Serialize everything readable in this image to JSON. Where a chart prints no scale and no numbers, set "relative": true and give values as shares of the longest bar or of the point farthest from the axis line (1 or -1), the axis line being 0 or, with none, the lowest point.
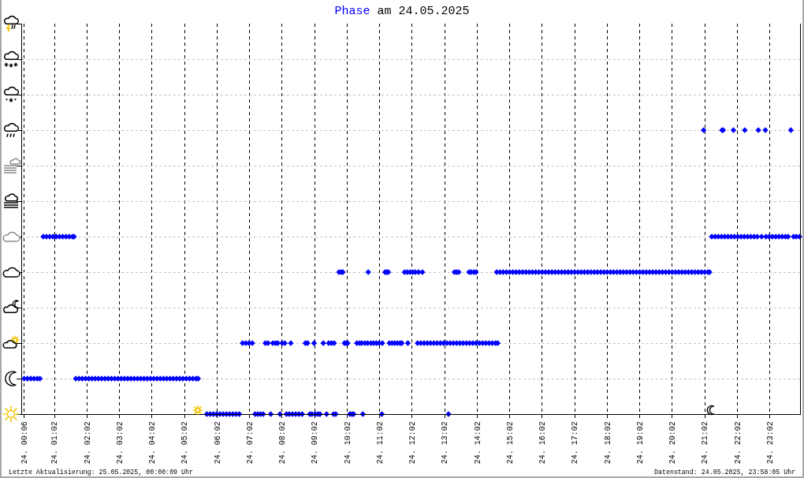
{
  "chart_data": {
    "type": "scatter",
    "title": "Phase am 24.05.2025",
    "annotations": [
      "Letzte Aktualisierung: 25.05.2025, 00:00:09 Uhr",
      "Datenstand: 24.05.2025, 23:58:05 Uhr"
    ],
    "relative": true,
    "series": [
      {
        "color": "#0000ff",
        "x": [
          "2025-05-24T00:06",
          "2025-05-24T00:12",
          "2025-05-24T00:18",
          "2025-05-24T00:24",
          "2025-05-24T00:30",
          "2025-05-24T00:35",
          "2025-05-24T00:41",
          "2025-05-24T00:47",
          "2025-05-24T00:53",
          "2025-05-24T00:59",
          "2025-05-24T01:05",
          "2025-05-24T01:11",
          "2025-05-24T01:17",
          "2025-05-24T01:23",
          "2025-05-24T01:29",
          "2025-05-24T01:35",
          "2025-05-24T01:38",
          "2025-05-24T01:41",
          "2025-05-24T01:47",
          "2025-05-24T01:53",
          "2025-05-24T01:59",
          "2025-05-24T02:05",
          "2025-05-24T02:11",
          "2025-05-24T02:17",
          "2025-05-24T02:23",
          "2025-05-24T02:29",
          "2025-05-24T02:35",
          "2025-05-24T02:41",
          "2025-05-24T02:47",
          "2025-05-24T02:53",
          "2025-05-24T02:59",
          "2025-05-24T03:05",
          "2025-05-24T03:11",
          "2025-05-24T03:17",
          "2025-05-24T03:23",
          "2025-05-24T03:29",
          "2025-05-24T03:35",
          "2025-05-24T03:41",
          "2025-05-24T03:47",
          "2025-05-24T03:53",
          "2025-05-24T03:59",
          "2025-05-24T04:05",
          "2025-05-24T04:11",
          "2025-05-24T04:17",
          "2025-05-24T04:23",
          "2025-05-24T04:29",
          "2025-05-24T04:35",
          "2025-05-24T04:41",
          "2025-05-24T04:47",
          "2025-05-24T04:53",
          "2025-05-24T04:59",
          "2025-05-24T05:05",
          "2025-05-24T05:11",
          "2025-05-24T05:17",
          "2025-05-24T05:23",
          "2025-05-24T05:27",
          "2025-05-24T05:43",
          "2025-05-24T05:49",
          "2025-05-24T05:55",
          "2025-05-24T06:01",
          "2025-05-24T06:07",
          "2025-05-24T06:13",
          "2025-05-24T06:19",
          "2025-05-24T06:25",
          "2025-05-24T06:31",
          "2025-05-24T06:37",
          "2025-05-24T06:43",
          "2025-05-24T07:12",
          "2025-05-24T07:17",
          "2025-05-24T07:22",
          "2025-05-24T07:27",
          "2025-05-24T07:41",
          "2025-05-24T07:58",
          "2025-05-24T08:10",
          "2025-05-24T08:15",
          "2025-05-24T08:21",
          "2025-05-24T08:27",
          "2025-05-24T08:33",
          "2025-05-24T08:39",
          "2025-05-24T08:53",
          "2025-05-24T08:57",
          "2025-05-24T09:03",
          "2025-05-24T09:08",
          "2025-05-24T09:12",
          "2025-05-24T09:24",
          "2025-05-24T09:37",
          "2025-05-24T09:41",
          "2025-05-24T10:07",
          "2025-05-24T10:11",
          "2025-05-24T10:14",
          "2025-05-24T10:31",
          "2025-05-24T11:06",
          "2025-05-24T13:09",
          "2025-05-24T06:49",
          "2025-05-24T06:55",
          "2025-05-24T07:01",
          "2025-05-24T07:07",
          "2025-05-24T07:31",
          "2025-05-24T07:36",
          "2025-05-24T07:45",
          "2025-05-24T07:50",
          "2025-05-24T07:54",
          "2025-05-24T08:02",
          "2025-05-24T08:07",
          "2025-05-24T08:18",
          "2025-05-24T08:45",
          "2025-05-24T08:49",
          "2025-05-24T09:01",
          "2025-05-24T09:18",
          "2025-05-24T09:28",
          "2025-05-24T09:33",
          "2025-05-24T09:38",
          "2025-05-24T09:57",
          "2025-05-24T10:00",
          "2025-05-24T10:03",
          "2025-05-24T10:20",
          "2025-05-24T10:25",
          "2025-05-24T10:29",
          "2025-05-24T10:35",
          "2025-05-24T10:40",
          "2025-05-24T10:46",
          "2025-05-24T10:51",
          "2025-05-24T10:56",
          "2025-05-24T11:01",
          "2025-05-24T11:07",
          "2025-05-24T11:20",
          "2025-05-24T11:25",
          "2025-05-24T11:30",
          "2025-05-24T11:35",
          "2025-05-24T11:40",
          "2025-05-24T11:43",
          "2025-05-24T11:54",
          "2025-05-24T12:12",
          "2025-05-24T12:18",
          "2025-05-24T12:24",
          "2025-05-24T12:30",
          "2025-05-24T12:36",
          "2025-05-24T12:42",
          "2025-05-24T12:48",
          "2025-05-24T12:54",
          "2025-05-24T13:00",
          "2025-05-24T13:06",
          "2025-05-24T13:12",
          "2025-05-24T13:18",
          "2025-05-24T13:24",
          "2025-05-24T13:30",
          "2025-05-24T13:36",
          "2025-05-24T13:42",
          "2025-05-24T13:48",
          "2025-05-24T13:54",
          "2025-05-24T14:00",
          "2025-05-24T14:06",
          "2025-05-24T14:12",
          "2025-05-24T14:18",
          "2025-05-24T14:24",
          "2025-05-24T14:30",
          "2025-05-24T14:36",
          "2025-05-24T14:40",
          "2025-05-24T09:47",
          "2025-05-24T09:51",
          "2025-05-24T09:54",
          "2025-05-24T10:41",
          "2025-05-24T11:12",
          "2025-05-24T11:15",
          "2025-05-24T11:18",
          "2025-05-24T11:48",
          "2025-05-24T11:53",
          "2025-05-24T11:58",
          "2025-05-24T12:03",
          "2025-05-24T12:08",
          "2025-05-24T12:14",
          "2025-05-24T12:21",
          "2025-05-24T13:20",
          "2025-05-24T13:24",
          "2025-05-24T13:28",
          "2025-05-24T13:47",
          "2025-05-24T13:51",
          "2025-05-24T13:56",
          "2025-05-24T14:00",
          "2025-05-24T14:38",
          "2025-05-24T14:44",
          "2025-05-24T14:50",
          "2025-05-24T14:56",
          "2025-05-24T15:02",
          "2025-05-24T15:08",
          "2025-05-24T15:14",
          "2025-05-24T15:20",
          "2025-05-24T15:26",
          "2025-05-24T15:32",
          "2025-05-24T15:38",
          "2025-05-24T15:44",
          "2025-05-24T15:50",
          "2025-05-24T15:56",
          "2025-05-24T16:02",
          "2025-05-24T16:08",
          "2025-05-24T16:14",
          "2025-05-24T16:20",
          "2025-05-24T16:26",
          "2025-05-24T16:32",
          "2025-05-24T16:38",
          "2025-05-24T16:44",
          "2025-05-24T16:50",
          "2025-05-24T16:56",
          "2025-05-24T17:02",
          "2025-05-24T17:08",
          "2025-05-24T17:14",
          "2025-05-24T17:20",
          "2025-05-24T17:26",
          "2025-05-24T17:32",
          "2025-05-24T17:38",
          "2025-05-24T17:44",
          "2025-05-24T17:50",
          "2025-05-24T17:56",
          "2025-05-24T18:02",
          "2025-05-24T18:08",
          "2025-05-24T18:14",
          "2025-05-24T18:20",
          "2025-05-24T18:26",
          "2025-05-24T18:32",
          "2025-05-24T18:38",
          "2025-05-24T18:44",
          "2025-05-24T18:50",
          "2025-05-24T18:56",
          "2025-05-24T19:02",
          "2025-05-24T19:08",
          "2025-05-24T19:14",
          "2025-05-24T19:20",
          "2025-05-24T19:26",
          "2025-05-24T19:32",
          "2025-05-24T19:38",
          "2025-05-24T19:44",
          "2025-05-24T19:50",
          "2025-05-24T19:56",
          "2025-05-24T20:02",
          "2025-05-24T20:08",
          "2025-05-24T20:14",
          "2025-05-24T20:20",
          "2025-05-24T20:26",
          "2025-05-24T20:32",
          "2025-05-24T20:38",
          "2025-05-24T20:44",
          "2025-05-24T20:50",
          "2025-05-24T20:56",
          "2025-05-24T21:02",
          "2025-05-24T21:08",
          "2025-05-24T21:11",
          "2025-05-24T21:15",
          "2025-05-24T21:21",
          "2025-05-24T21:27",
          "2025-05-24T21:33",
          "2025-05-24T21:39",
          "2025-05-24T21:45",
          "2025-05-24T21:51",
          "2025-05-24T21:57",
          "2025-05-24T22:03",
          "2025-05-24T22:09",
          "2025-05-24T22:15",
          "2025-05-24T22:21",
          "2025-05-24T22:27",
          "2025-05-24T22:33",
          "2025-05-24T22:39",
          "2025-05-24T22:47",
          "2025-05-24T22:55",
          "2025-05-24T23:01",
          "2025-05-24T23:07",
          "2025-05-24T23:13",
          "2025-05-24T23:19",
          "2025-05-24T23:25",
          "2025-05-24T23:31",
          "2025-05-24T23:36",
          "2025-05-24T23:46",
          "2025-05-24T23:51",
          "2025-05-24T23:57",
          "2025-05-24T21:00",
          "2025-05-24T21:34",
          "2025-05-24T21:36",
          "2025-05-24T21:55",
          "2025-05-24T22:16",
          "2025-05-24T22:41",
          "2025-05-24T22:54",
          "2025-05-24T23:41"
        ],
        "values": [
          0.125,
          0.125,
          0.125,
          0.125,
          0.125,
          0.125,
          0.625,
          0.625,
          0.625,
          0.625,
          0.625,
          0.625,
          0.625,
          0.625,
          0.625,
          0.625,
          0.625,
          0.125,
          0.125,
          0.125,
          0.125,
          0.125,
          0.125,
          0.125,
          0.125,
          0.125,
          0.125,
          0.125,
          0.125,
          0.125,
          0.125,
          0.125,
          0.125,
          0.125,
          0.125,
          0.125,
          0.125,
          0.125,
          0.125,
          0.125,
          0.125,
          0.125,
          0.125,
          0.125,
          0.125,
          0.125,
          0.125,
          0.125,
          0.125,
          0.125,
          0.125,
          0.125,
          0.125,
          0.125,
          0.125,
          0.125,
          0,
          0,
          0,
          0,
          0,
          0,
          0,
          0,
          0,
          0,
          0,
          0,
          0,
          0,
          0,
          0,
          0,
          0,
          0,
          0,
          0,
          0,
          0,
          0,
          0,
          0,
          0,
          0,
          0,
          0,
          0,
          0,
          0,
          0,
          0,
          0,
          0,
          0.25,
          0.25,
          0.25,
          0.25,
          0.25,
          0.25,
          0.25,
          0.25,
          0.25,
          0.25,
          0.25,
          0.25,
          0.25,
          0.25,
          0.25,
          0.25,
          0.25,
          0.25,
          0.25,
          0.25,
          0.25,
          0.25,
          0.25,
          0.25,
          0.25,
          0.25,
          0.25,
          0.25,
          0.25,
          0.25,
          0.25,
          0.25,
          0.25,
          0.25,
          0.25,
          0.25,
          0.25,
          0.25,
          0.25,
          0.25,
          0.25,
          0.25,
          0.25,
          0.25,
          0.25,
          0.25,
          0.25,
          0.25,
          0.25,
          0.25,
          0.25,
          0.25,
          0.25,
          0.25,
          0.25,
          0.25,
          0.25,
          0.25,
          0.25,
          0.25,
          0.25,
          0.25,
          0.25,
          0.25,
          0.25,
          0.5,
          0.5,
          0.5,
          0.5,
          0.5,
          0.5,
          0.5,
          0.5,
          0.5,
          0.5,
          0.5,
          0.5,
          0.5,
          0.5,
          0.5,
          0.5,
          0.5,
          0.5,
          0.5,
          0.5,
          0.5,
          0.5,
          0.5,
          0.5,
          0.5,
          0.5,
          0.5,
          0.5,
          0.5,
          0.5,
          0.5,
          0.5,
          0.5,
          0.5,
          0.5,
          0.5,
          0.5,
          0.5,
          0.5,
          0.5,
          0.5,
          0.5,
          0.5,
          0.5,
          0.5,
          0.5,
          0.5,
          0.5,
          0.5,
          0.5,
          0.5,
          0.5,
          0.5,
          0.5,
          0.5,
          0.5,
          0.5,
          0.5,
          0.5,
          0.5,
          0.5,
          0.5,
          0.5,
          0.5,
          0.5,
          0.5,
          0.5,
          0.5,
          0.5,
          0.5,
          0.5,
          0.5,
          0.5,
          0.5,
          0.5,
          0.5,
          0.5,
          0.5,
          0.5,
          0.5,
          0.5,
          0.5,
          0.5,
          0.5,
          0.5,
          0.5,
          0.5,
          0.5,
          0.625,
          0.625,
          0.625,
          0.625,
          0.625,
          0.625,
          0.625,
          0.625,
          0.625,
          0.625,
          0.625,
          0.625,
          0.625,
          0.625,
          0.625,
          0.625,
          0.625,
          0.625,
          0.625,
          0.625,
          0.625,
          0.625,
          0.625,
          0.625,
          0.625,
          0.625,
          0.625,
          1,
          1,
          1,
          1,
          1,
          1,
          1,
          1
        ]
      }
    ],
    "xlim": [
      "2025-05-24T00:02",
      "2025-05-24T23:58"
    ],
    "xticks": [
      {
        "value": "2025-05-24T00:06",
        "label": "24. 00:06"
      },
      {
        "value": "2025-05-24T01:02",
        "label": "24. 01:02"
      },
      {
        "value": "2025-05-24T02:02",
        "label": "24. 02:02"
      },
      {
        "value": "2025-05-24T03:02",
        "label": "24. 03:02"
      },
      {
        "value": "2025-05-24T04:02",
        "label": "24. 04:02"
      },
      {
        "value": "2025-05-24T05:02",
        "label": "24. 05:02"
      },
      {
        "value": "2025-05-24T06:02",
        "label": "24. 06:02"
      },
      {
        "value": "2025-05-24T07:02",
        "label": "24. 07:02"
      },
      {
        "value": "2025-05-24T08:02",
        "label": "24. 08:02"
      },
      {
        "value": "2025-05-24T09:02",
        "label": "24. 09:02"
      },
      {
        "value": "2025-05-24T10:02",
        "label": "24. 10:02"
      },
      {
        "value": "2025-05-24T11:02",
        "label": "24. 11:02"
      },
      {
        "value": "2025-05-24T12:02",
        "label": "24. 12:02"
      },
      {
        "value": "2025-05-24T13:02",
        "label": "24. 13:02"
      },
      {
        "value": "2025-05-24T14:02",
        "label": "24. 14:02"
      },
      {
        "value": "2025-05-24T15:02",
        "label": "24. 15:02"
      },
      {
        "value": "2025-05-24T16:02",
        "label": "24. 16:02"
      },
      {
        "value": "2025-05-24T17:02",
        "label": "24. 17:02"
      },
      {
        "value": "2025-05-24T18:02",
        "label": "24. 18:02"
      },
      {
        "value": "2025-05-24T19:02",
        "label": "24. 19:02"
      },
      {
        "value": "2025-05-24T20:02",
        "label": "24. 20:02"
      },
      {
        "value": "2025-05-24T21:02",
        "label": "24. 21:02"
      },
      {
        "value": "2025-05-24T22:02",
        "label": "24. 22:02"
      },
      {
        "value": "2025-05-24T23:02",
        "label": "24. 23:02"
      }
    ],
    "grid": true,
    "marker": "diamond"
  }
}
